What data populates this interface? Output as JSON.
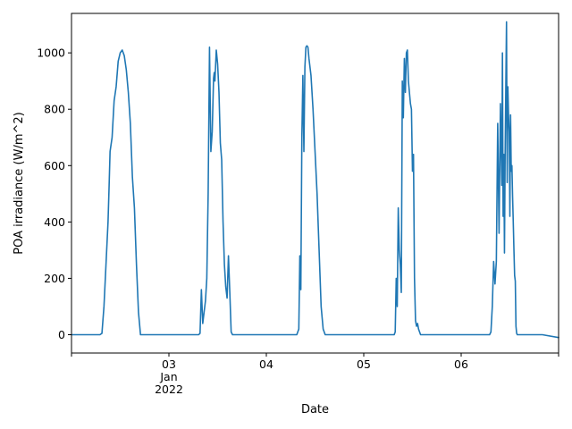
{
  "chart_data": {
    "type": "line",
    "title": "",
    "xlabel": "Date",
    "ylabel": "POA irradiance (W/m^2)",
    "xlim": [
      "2022-01-02 00:00",
      "2022-01-07 00:00"
    ],
    "ylim": [
      -65,
      1140
    ],
    "grid": false,
    "legend": "none",
    "y_ticks": [
      0,
      200,
      400,
      600,
      800,
      1000
    ],
    "x_ticks": [
      {
        "date": "2022-01-03",
        "label": "03",
        "sublabel1": "Jan",
        "sublabel2": "2022"
      },
      {
        "date": "2022-01-04",
        "label": "04",
        "sublabel1": "",
        "sublabel2": ""
      },
      {
        "date": "2022-01-05",
        "label": "05",
        "sublabel1": "",
        "sublabel2": ""
      },
      {
        "date": "2022-01-06",
        "label": "06",
        "sublabel1": "",
        "sublabel2": ""
      }
    ],
    "x_minor_ticks": [
      "2022-01-02",
      "2022-01-07"
    ],
    "colors": {
      "line": "#1f77b4"
    },
    "series": [
      {
        "x": [
          "2022-01-02 00:00",
          "2022-01-02 07:00",
          "2022-01-02 07:30",
          "2022-01-02 08:00",
          "2022-01-02 08:30",
          "2022-01-02 09:00",
          "2022-01-02 09:15",
          "2022-01-02 09:30",
          "2022-01-02 10:00",
          "2022-01-02 10:30",
          "2022-01-02 11:00",
          "2022-01-02 11:30",
          "2022-01-02 12:00",
          "2022-01-02 12:30",
          "2022-01-02 13:00",
          "2022-01-02 13:30",
          "2022-01-02 14:00",
          "2022-01-02 14:30",
          "2022-01-02 15:00",
          "2022-01-02 15:30",
          "2022-01-02 16:00",
          "2022-01-02 16:30",
          "2022-01-02 17:00",
          "2022-01-03 03:00",
          "2022-01-03 07:20",
          "2022-01-03 07:40",
          "2022-01-03 08:00",
          "2022-01-03 08:20",
          "2022-01-03 08:40",
          "2022-01-03 09:00",
          "2022-01-03 09:20",
          "2022-01-03 09:40",
          "2022-01-03 10:00",
          "2022-01-03 10:20",
          "2022-01-03 10:40",
          "2022-01-03 11:00",
          "2022-01-03 11:10",
          "2022-01-03 11:20",
          "2022-01-03 11:40",
          "2022-01-03 12:00",
          "2022-01-03 12:20",
          "2022-01-03 12:40",
          "2022-01-03 13:00",
          "2022-01-03 13:20",
          "2022-01-03 13:40",
          "2022-01-03 14:00",
          "2022-01-03 14:20",
          "2022-01-03 14:40",
          "2022-01-03 15:00",
          "2022-01-03 15:20",
          "2022-01-03 15:40",
          "2022-01-03 16:00",
          "2022-01-03 16:20",
          "2022-01-03 16:40",
          "2022-01-03 17:00",
          "2022-01-04 03:00",
          "2022-01-04 07:30",
          "2022-01-04 08:00",
          "2022-01-04 08:15",
          "2022-01-04 08:30",
          "2022-01-04 08:45",
          "2022-01-04 09:00",
          "2022-01-04 09:15",
          "2022-01-04 09:30",
          "2022-01-04 09:45",
          "2022-01-04 10:00",
          "2022-01-04 10:15",
          "2022-01-04 10:30",
          "2022-01-04 11:00",
          "2022-01-04 11:30",
          "2022-01-04 12:00",
          "2022-01-04 12:30",
          "2022-01-04 13:00",
          "2022-01-04 13:30",
          "2022-01-04 14:00",
          "2022-01-04 14:30",
          "2022-01-04 15:00",
          "2022-01-04 15:30",
          "2022-01-04 16:00",
          "2022-01-04 16:30",
          "2022-01-04 17:00",
          "2022-01-05 03:00",
          "2022-01-05 07:30",
          "2022-01-05 07:45",
          "2022-01-05 08:00",
          "2022-01-05 08:15",
          "2022-01-05 08:30",
          "2022-01-05 08:45",
          "2022-01-05 09:00",
          "2022-01-05 09:15",
          "2022-01-05 09:30",
          "2022-01-05 09:45",
          "2022-01-05 10:00",
          "2022-01-05 10:15",
          "2022-01-05 10:30",
          "2022-01-05 10:45",
          "2022-01-05 11:00",
          "2022-01-05 11:15",
          "2022-01-05 11:30",
          "2022-01-05 11:45",
          "2022-01-05 12:00",
          "2022-01-05 12:15",
          "2022-01-05 12:30",
          "2022-01-05 12:45",
          "2022-01-05 13:00",
          "2022-01-05 13:15",
          "2022-01-05 13:30",
          "2022-01-05 13:45",
          "2022-01-05 14:00",
          "2022-01-05 14:15",
          "2022-01-05 14:30",
          "2022-01-05 14:45",
          "2022-01-05 15:00",
          "2022-01-05 15:15",
          "2022-01-05 15:30",
          "2022-01-05 16:00",
          "2022-01-05 16:30",
          "2022-01-05 17:00",
          "2022-01-06 03:00",
          "2022-01-06 07:00",
          "2022-01-06 07:20",
          "2022-01-06 07:40",
          "2022-01-06 08:00",
          "2022-01-06 08:20",
          "2022-01-06 08:40",
          "2022-01-06 09:00",
          "2022-01-06 09:20",
          "2022-01-06 09:40",
          "2022-01-06 10:00",
          "2022-01-06 10:10",
          "2022-01-06 10:20",
          "2022-01-06 10:30",
          "2022-01-06 10:40",
          "2022-01-06 10:50",
          "2022-01-06 11:00",
          "2022-01-06 11:10",
          "2022-01-06 11:20",
          "2022-01-06 11:30",
          "2022-01-06 11:40",
          "2022-01-06 11:50",
          "2022-01-06 12:00",
          "2022-01-06 12:10",
          "2022-01-06 12:20",
          "2022-01-06 12:30",
          "2022-01-06 12:40",
          "2022-01-06 12:50",
          "2022-01-06 13:00",
          "2022-01-06 13:10",
          "2022-01-06 13:20",
          "2022-01-06 13:30",
          "2022-01-06 13:40",
          "2022-01-06 13:50",
          "2022-01-06 14:00",
          "2022-01-06 14:10",
          "2022-01-06 14:20",
          "2022-01-06 14:30",
          "2022-01-06 14:40",
          "2022-01-06 14:50",
          "2022-01-06 15:00",
          "2022-01-06 15:20",
          "2022-01-06 15:40",
          "2022-01-06 16:00",
          "2022-01-06 16:30",
          "2022-01-06 17:00",
          "2022-01-06 20:00",
          "2022-01-07 00:00"
        ],
        "y": [
          0,
          0,
          5,
          100,
          250,
          400,
          520,
          650,
          700,
          830,
          880,
          970,
          1000,
          1010,
          990,
          940,
          860,
          750,
          560,
          450,
          250,
          80,
          0,
          0,
          0,
          5,
          160,
          40,
          80,
          120,
          200,
          500,
          1020,
          650,
          720,
          910,
          930,
          900,
          1010,
          960,
          860,
          680,
          620,
          400,
          250,
          170,
          130,
          280,
          150,
          10,
          0,
          0,
          0,
          0,
          0,
          0,
          0,
          20,
          280,
          160,
          700,
          920,
          650,
          950,
          1020,
          1025,
          1020,
          980,
          920,
          800,
          650,
          500,
          300,
          100,
          20,
          0,
          0,
          0,
          0,
          0,
          0,
          0,
          0,
          10,
          200,
          100,
          450,
          300,
          250,
          150,
          900,
          770,
          980,
          860,
          1000,
          1010,
          900,
          860,
          820,
          800,
          580,
          640,
          200,
          50,
          30,
          40,
          20,
          10,
          0,
          0,
          0,
          0,
          0,
          0,
          0,
          0,
          0,
          0,
          0,
          0,
          10,
          100,
          260,
          180,
          260,
          750,
          360,
          820,
          530,
          1000,
          420,
          640,
          290,
          640,
          880,
          1110,
          540,
          880,
          780,
          720,
          420,
          780,
          580,
          600,
          490,
          400,
          300,
          210,
          190,
          30,
          5,
          0,
          0,
          0,
          0,
          0,
          0,
          0,
          0,
          0,
          0,
          0,
          0,
          0,
          0,
          -10
        ]
      }
    ]
  }
}
